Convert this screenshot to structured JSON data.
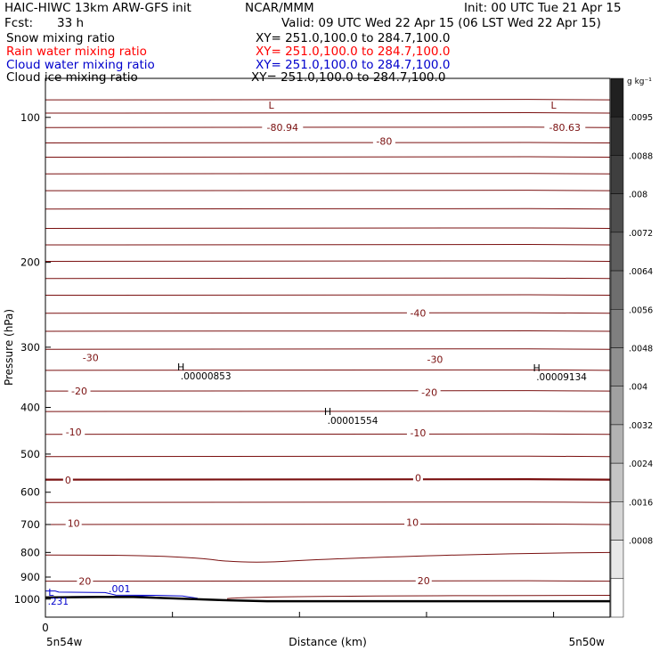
{
  "header": {
    "title": "HAIC-HIWC 13km ARW-GFS init",
    "org": "NCAR/MMM",
    "init": "Init: 00 UTC Tue 21 Apr 15",
    "fcst_label": "Fcst:",
    "fcst_value": "33 h",
    "valid": "Valid: 09 UTC Wed 22 Apr 15 (06 LST Wed 22 Apr 15)",
    "fields": [
      {
        "name": "Snow mixing ratio",
        "xy": "XY= 251.0,100.0 to 284.7,100.0",
        "color": "#000000"
      },
      {
        "name": "Rain water mixing ratio",
        "xy": "XY= 251.0,100.0 to 284.7,100.0",
        "color": "#ff0000"
      },
      {
        "name": "Cloud water mixing ratio",
        "xy": "XY= 251.0,100.0 to 284.7,100.0",
        "color": "#0000cc"
      },
      {
        "name": "Cloud ice mixing ratio",
        "xy": "XY= 251.0,100.0 to 284.7,100.0",
        "color": "#000000"
      }
    ]
  },
  "chart_data": {
    "type": "cross-section contour",
    "ylabel": "Pressure (hPa)",
    "xlabel": "Distance (km)",
    "ylim": [
      1050,
      50
    ],
    "yticks": [
      100,
      200,
      300,
      400,
      500,
      600,
      700,
      800,
      900,
      1000
    ],
    "y_log_scale": true,
    "xticks": [
      "0"
    ],
    "x_end_labels": {
      "left": "5n54w",
      "right": "5n50w"
    },
    "temperature_contour_color": "#7a1010",
    "contour_labels": [
      {
        "text": "-80.94",
        "x": 0.42,
        "p": 105
      },
      {
        "text": "-80",
        "x": 0.6,
        "p": 112
      },
      {
        "text": "-80.63",
        "x": 0.92,
        "p": 105
      },
      {
        "text": "-40",
        "x": 0.66,
        "p": 255
      },
      {
        "text": "-30",
        "x": 0.08,
        "p": 315
      },
      {
        "text": "-30",
        "x": 0.69,
        "p": 318
      },
      {
        "text": "-20",
        "x": 0.06,
        "p": 370
      },
      {
        "text": "-20",
        "x": 0.68,
        "p": 372
      },
      {
        "text": "-10",
        "x": 0.05,
        "p": 450
      },
      {
        "text": "-10",
        "x": 0.66,
        "p": 452
      },
      {
        "text": "0",
        "x": 0.04,
        "p": 566
      },
      {
        "text": "0",
        "x": 0.66,
        "p": 560
      },
      {
        "text": "10",
        "x": 0.05,
        "p": 695
      },
      {
        "text": "10",
        "x": 0.65,
        "p": 692
      },
      {
        "text": "20",
        "x": 0.07,
        "p": 918
      },
      {
        "text": "20",
        "x": 0.67,
        "p": 915
      }
    ],
    "extrema": [
      {
        "mark": "L",
        "x": 0.4,
        "p": 96
      },
      {
        "mark": "L",
        "x": 0.9,
        "p": 96
      },
      {
        "mark": "H",
        "value": ".00000853",
        "x": 0.24,
        "p": 335
      },
      {
        "mark": "H",
        "value": ".00001554",
        "x": 0.5,
        "p": 415
      },
      {
        "mark": "H",
        "value": ".00009134",
        "x": 0.87,
        "p": 337
      },
      {
        "mark": "L",
        "value": ".231",
        "x": 0.01,
        "p": 985
      }
    ],
    "cloud_water_contour": {
      "label": ".001",
      "color": "#0000cc"
    },
    "colorbar": {
      "units": "g kg⁻¹",
      "labels": [
        ".0095",
        ".0088",
        ".008",
        ".0072",
        ".0064",
        ".0056",
        ".0048",
        ".004",
        ".0032",
        ".0024",
        ".0016",
        ".0008"
      ],
      "colors": [
        "#202020",
        "#303030",
        "#3f3f3f",
        "#4e4e4e",
        "#5e5e5e",
        "#6e6e6e",
        "#7f7f7f",
        "#8f8f8f",
        "#a0a0a0",
        "#b2b2b2",
        "#c4c4c4",
        "#d6d6d6",
        "#e8e8e8",
        "#ffffff"
      ]
    }
  }
}
